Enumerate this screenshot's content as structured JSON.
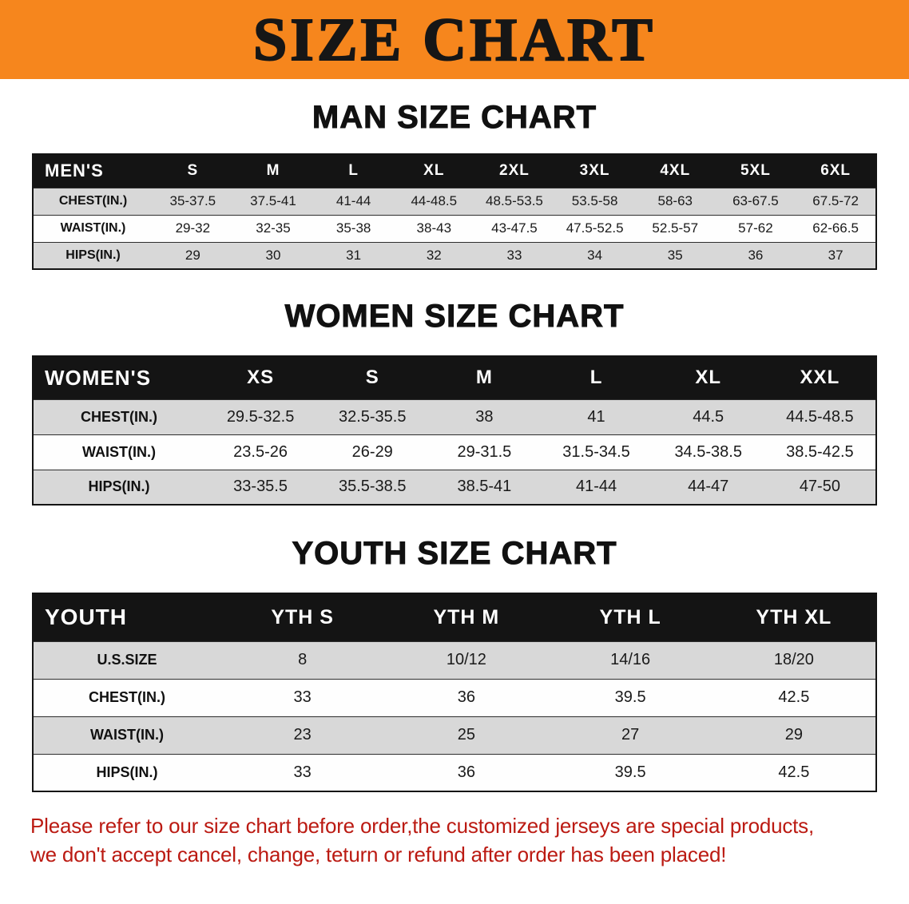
{
  "banner": {
    "title": "SIZE CHART"
  },
  "colors": {
    "banner_bg": "#f6861d",
    "header_bg": "#141414",
    "stripe": "#d8d8d8",
    "disclaimer_red": "#bb1a12"
  },
  "sections": [
    {
      "id": "men",
      "heading": "MAN SIZE CHART",
      "table": {
        "header": [
          "MEN'S",
          "S",
          "M",
          "L",
          "XL",
          "2XL",
          "3XL",
          "4XL",
          "5XL",
          "6XL"
        ],
        "rows": [
          [
            "CHEST(IN.)",
            "35-37.5",
            "37.5-41",
            "41-44",
            "44-48.5",
            "48.5-53.5",
            "53.5-58",
            "58-63",
            "63-67.5",
            "67.5-72"
          ],
          [
            "WAIST(IN.)",
            "29-32",
            "32-35",
            "35-38",
            "38-43",
            "43-47.5",
            "47.5-52.5",
            "52.5-57",
            "57-62",
            "62-66.5"
          ],
          [
            "HIPS(IN.)",
            "29",
            "30",
            "31",
            "32",
            "33",
            "34",
            "35",
            "36",
            "37"
          ]
        ]
      }
    },
    {
      "id": "women",
      "heading": "WOMEN SIZE CHART",
      "table": {
        "header": [
          "WOMEN'S",
          "XS",
          "S",
          "M",
          "L",
          "XL",
          "XXL"
        ],
        "rows": [
          [
            "CHEST(IN.)",
            "29.5-32.5",
            "32.5-35.5",
            "38",
            "41",
            "44.5",
            "44.5-48.5"
          ],
          [
            "WAIST(IN.)",
            "23.5-26",
            "26-29",
            "29-31.5",
            "31.5-34.5",
            "34.5-38.5",
            "38.5-42.5"
          ],
          [
            "HIPS(IN.)",
            "33-35.5",
            "35.5-38.5",
            "38.5-41",
            "41-44",
            "44-47",
            "47-50"
          ]
        ]
      }
    },
    {
      "id": "youth",
      "heading": "YOUTH SIZE CHART",
      "table": {
        "header": [
          "YOUTH",
          "YTH S",
          "YTH M",
          "YTH L",
          "YTH XL"
        ],
        "rows": [
          [
            "U.S.SIZE",
            "8",
            "10/12",
            "14/16",
            "18/20"
          ],
          [
            "CHEST(IN.)",
            "33",
            "36",
            "39.5",
            "42.5"
          ],
          [
            "WAIST(IN.)",
            "23",
            "25",
            "27",
            "29"
          ],
          [
            "HIPS(IN.)",
            "33",
            "36",
            "39.5",
            "42.5"
          ]
        ]
      }
    }
  ],
  "disclaimer": {
    "line1": "Please refer to our size chart before order,the customized jerseys are special products,",
    "line2": "we don't accept cancel, change, teturn or refund after order has been placed!"
  }
}
